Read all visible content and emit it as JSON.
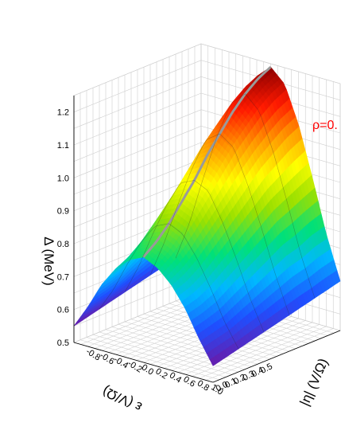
{
  "chart_data": {
    "type": "surface3d",
    "annotation": "ρ=0.",
    "zlabel": "Δ (MeV)",
    "xlabel": "ε (V/Ω)",
    "ylabel": "|η| (V/Ω)",
    "xlim": [
      -1.0,
      1.0
    ],
    "ylim": [
      0.0,
      1.0
    ],
    "zlim": [
      0.5,
      1.25
    ],
    "zticks": [
      "0.5",
      "0.6",
      "0.7",
      "0.8",
      "0.9",
      "1.0",
      "1.1",
      "1.2"
    ],
    "xticks": [
      "-0.8",
      "-0.6",
      "-0.4",
      "-0.2",
      "0.0",
      "0.2",
      "0.4",
      "0.6",
      "0.8",
      "1.0"
    ],
    "yticks": [
      "0.0",
      "0.1",
      "0.2",
      "0.3",
      "0.4",
      "0.5"
    ],
    "grid": true,
    "colormap": [
      "#6a1aa8",
      "#1f4fff",
      "#00b8ff",
      "#00e07a",
      "#9be000",
      "#ffff00",
      "#ff9a00",
      "#ff1a00",
      "#8b0000"
    ],
    "surface": {
      "x": [
        -1.0,
        -0.8,
        -0.6,
        -0.4,
        -0.2,
        0.0,
        0.2,
        0.4,
        0.6,
        0.8,
        1.0
      ],
      "y": [
        0.0,
        0.1,
        0.2,
        0.3,
        0.4,
        0.5,
        0.6,
        0.7,
        0.8,
        0.9,
        1.0
      ],
      "z": [
        [
          0.55,
          0.62,
          0.7,
          0.76,
          0.8,
          0.82,
          0.8,
          0.76,
          0.7,
          0.62,
          0.55
        ],
        [
          0.56,
          0.63,
          0.71,
          0.78,
          0.83,
          0.85,
          0.83,
          0.78,
          0.71,
          0.63,
          0.56
        ],
        [
          0.57,
          0.64,
          0.73,
          0.81,
          0.87,
          0.89,
          0.87,
          0.81,
          0.73,
          0.64,
          0.57
        ],
        [
          0.58,
          0.66,
          0.76,
          0.85,
          0.92,
          0.94,
          0.92,
          0.85,
          0.76,
          0.66,
          0.58
        ],
        [
          0.59,
          0.68,
          0.79,
          0.89,
          0.97,
          0.99,
          0.97,
          0.89,
          0.79,
          0.68,
          0.59
        ],
        [
          0.6,
          0.7,
          0.82,
          0.93,
          1.02,
          1.05,
          1.02,
          0.93,
          0.82,
          0.7,
          0.6
        ],
        [
          0.61,
          0.72,
          0.85,
          0.97,
          1.07,
          1.1,
          1.07,
          0.97,
          0.85,
          0.72,
          0.61
        ],
        [
          0.62,
          0.74,
          0.88,
          1.01,
          1.11,
          1.15,
          1.11,
          1.01,
          0.88,
          0.74,
          0.62
        ],
        [
          0.63,
          0.75,
          0.9,
          1.04,
          1.15,
          1.19,
          1.15,
          1.04,
          0.9,
          0.75,
          0.63
        ],
        [
          0.64,
          0.77,
          0.92,
          1.07,
          1.18,
          1.22,
          1.18,
          1.07,
          0.92,
          0.77,
          0.64
        ],
        [
          0.65,
          0.78,
          0.94,
          1.09,
          1.2,
          1.24,
          1.2,
          1.09,
          0.94,
          0.78,
          0.65
        ]
      ]
    }
  }
}
